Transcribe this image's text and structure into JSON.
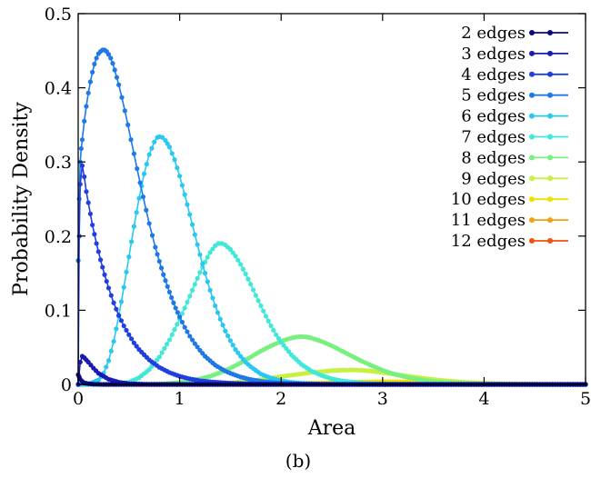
{
  "chart_data": {
    "type": "line",
    "title": "",
    "caption": "(b)",
    "xlabel": "Area",
    "ylabel": "Probability Density",
    "xlim": [
      0,
      5
    ],
    "ylim": [
      0,
      0.5
    ],
    "x_ticks": [
      "0",
      "1",
      "2",
      "3",
      "4",
      "5"
    ],
    "y_ticks": [
      "0",
      "0.1",
      "0.2",
      "0.3",
      "0.4",
      "0.5"
    ],
    "grid": false,
    "legend_position": "top-right",
    "markers": "filled-circle",
    "series": [
      {
        "name": "2 edges",
        "color": "#0a0a80",
        "points": [
          [
            0.0,
            0.013
          ],
          [
            0.01,
            0.01
          ],
          [
            0.02,
            0.007
          ],
          [
            0.04,
            0.004
          ],
          [
            0.06,
            0.002
          ],
          [
            0.1,
            0.001
          ],
          [
            0.15,
            0.0003
          ],
          [
            0.25,
            0.0
          ],
          [
            0.5,
            0.0
          ],
          [
            1.0,
            0.0
          ],
          [
            1.5,
            0.0
          ],
          [
            2.0,
            0.0
          ],
          [
            2.5,
            0.0
          ],
          [
            3.0,
            0.0
          ],
          [
            3.5,
            0.0
          ],
          [
            4.0,
            0.0
          ],
          [
            4.5,
            0.0
          ],
          [
            5.0,
            0.0
          ]
        ]
      },
      {
        "name": "3 edges",
        "color": "#1a1ab0",
        "points": [
          [
            0.0,
            0.0
          ],
          [
            0.02,
            0.03
          ],
          [
            0.04,
            0.038
          ],
          [
            0.06,
            0.036
          ],
          [
            0.1,
            0.03
          ],
          [
            0.15,
            0.022
          ],
          [
            0.2,
            0.015
          ],
          [
            0.3,
            0.007
          ],
          [
            0.4,
            0.003
          ],
          [
            0.5,
            0.001
          ],
          [
            0.7,
            0.0
          ],
          [
            1.0,
            0.0
          ],
          [
            2.0,
            0.0
          ],
          [
            3.0,
            0.0
          ],
          [
            4.0,
            0.0
          ],
          [
            5.0,
            0.0
          ]
        ]
      },
      {
        "name": "4 edges",
        "color": "#1f3fe0",
        "points": [
          [
            0.0,
            0.0
          ],
          [
            0.01,
            0.2
          ],
          [
            0.02,
            0.27
          ],
          [
            0.04,
            0.295
          ],
          [
            0.06,
            0.28
          ],
          [
            0.08,
            0.26
          ],
          [
            0.1,
            0.245
          ],
          [
            0.14,
            0.215
          ],
          [
            0.18,
            0.19
          ],
          [
            0.22,
            0.168
          ],
          [
            0.26,
            0.148
          ],
          [
            0.3,
            0.13
          ],
          [
            0.35,
            0.11
          ],
          [
            0.4,
            0.093
          ],
          [
            0.45,
            0.079
          ],
          [
            0.5,
            0.067
          ],
          [
            0.55,
            0.056
          ],
          [
            0.6,
            0.047
          ],
          [
            0.7,
            0.033
          ],
          [
            0.8,
            0.023
          ],
          [
            0.9,
            0.016
          ],
          [
            1.0,
            0.011
          ],
          [
            1.1,
            0.0075
          ],
          [
            1.2,
            0.005
          ],
          [
            1.3,
            0.0035
          ],
          [
            1.5,
            0.0017
          ],
          [
            1.7,
            0.0008
          ],
          [
            2.0,
            0.0002
          ],
          [
            2.5,
            0.0
          ],
          [
            3.0,
            0.0
          ],
          [
            4.0,
            0.0
          ],
          [
            5.0,
            0.0
          ]
        ]
      },
      {
        "name": "5 edges",
        "color": "#1f78e8",
        "points": [
          [
            0.0,
            0.167
          ],
          [
            0.01,
            0.25
          ],
          [
            0.02,
            0.3
          ],
          [
            0.03,
            0.318
          ],
          [
            0.04,
            0.33
          ],
          [
            0.06,
            0.355
          ],
          [
            0.08,
            0.375
          ],
          [
            0.1,
            0.393
          ],
          [
            0.12,
            0.408
          ],
          [
            0.14,
            0.421
          ],
          [
            0.16,
            0.432
          ],
          [
            0.18,
            0.44
          ],
          [
            0.2,
            0.446
          ],
          [
            0.22,
            0.449
          ],
          [
            0.24,
            0.451
          ],
          [
            0.26,
            0.451
          ],
          [
            0.28,
            0.449
          ],
          [
            0.3,
            0.445
          ],
          [
            0.32,
            0.44
          ],
          [
            0.34,
            0.433
          ],
          [
            0.36,
            0.424
          ],
          [
            0.38,
            0.414
          ],
          [
            0.4,
            0.404
          ],
          [
            0.43,
            0.387
          ],
          [
            0.46,
            0.369
          ],
          [
            0.49,
            0.35
          ],
          [
            0.52,
            0.33
          ],
          [
            0.55,
            0.311
          ],
          [
            0.58,
            0.291
          ],
          [
            0.61,
            0.272
          ],
          [
            0.64,
            0.253
          ],
          [
            0.67,
            0.235
          ],
          [
            0.7,
            0.217
          ],
          [
            0.73,
            0.201
          ],
          [
            0.76,
            0.185
          ],
          [
            0.8,
            0.166
          ],
          [
            0.84,
            0.148
          ],
          [
            0.88,
            0.132
          ],
          [
            0.92,
            0.117
          ],
          [
            0.96,
            0.103
          ],
          [
            1.0,
            0.091
          ],
          [
            1.05,
            0.077
          ],
          [
            1.1,
            0.065
          ],
          [
            1.15,
            0.055
          ],
          [
            1.2,
            0.046
          ],
          [
            1.25,
            0.038
          ],
          [
            1.3,
            0.032
          ],
          [
            1.35,
            0.026
          ],
          [
            1.4,
            0.022
          ],
          [
            1.45,
            0.018
          ],
          [
            1.5,
            0.015
          ],
          [
            1.6,
            0.01
          ],
          [
            1.7,
            0.0066
          ],
          [
            1.8,
            0.0043
          ],
          [
            1.9,
            0.0028
          ],
          [
            2.0,
            0.0018
          ],
          [
            2.2,
            0.0007
          ],
          [
            2.5,
            0.0002
          ],
          [
            3.0,
            0.0
          ],
          [
            4.0,
            0.0
          ],
          [
            5.0,
            0.0
          ]
        ]
      },
      {
        "name": "6 edges",
        "color": "#28c8f0",
        "points": [
          [
            0.0,
            0.0
          ],
          [
            0.1,
            0.0003
          ],
          [
            0.2,
            0.006
          ],
          [
            0.25,
            0.015
          ],
          [
            0.3,
            0.032
          ],
          [
            0.35,
            0.058
          ],
          [
            0.4,
            0.092
          ],
          [
            0.45,
            0.131
          ],
          [
            0.5,
            0.172
          ],
          [
            0.55,
            0.213
          ],
          [
            0.6,
            0.251
          ],
          [
            0.65,
            0.284
          ],
          [
            0.7,
            0.31
          ],
          [
            0.75,
            0.327
          ],
          [
            0.78,
            0.333
          ],
          [
            0.8,
            0.334
          ],
          [
            0.83,
            0.333
          ],
          [
            0.86,
            0.329
          ],
          [
            0.9,
            0.32
          ],
          [
            0.95,
            0.303
          ],
          [
            1.0,
            0.281
          ],
          [
            1.05,
            0.256
          ],
          [
            1.1,
            0.229
          ],
          [
            1.15,
            0.202
          ],
          [
            1.2,
            0.175
          ],
          [
            1.25,
            0.15
          ],
          [
            1.3,
            0.127
          ],
          [
            1.35,
            0.106
          ],
          [
            1.4,
            0.088
          ],
          [
            1.45,
            0.072
          ],
          [
            1.5,
            0.059
          ],
          [
            1.55,
            0.047
          ],
          [
            1.6,
            0.038
          ],
          [
            1.65,
            0.03
          ],
          [
            1.7,
            0.024
          ],
          [
            1.8,
            0.014
          ],
          [
            1.9,
            0.0085
          ],
          [
            2.0,
            0.005
          ],
          [
            2.1,
            0.0028
          ],
          [
            2.2,
            0.0015
          ],
          [
            2.4,
            0.0004
          ],
          [
            2.7,
            0.0
          ],
          [
            3.0,
            0.0
          ],
          [
            4.0,
            0.0
          ],
          [
            5.0,
            0.0
          ]
        ]
      },
      {
        "name": "7 edges",
        "color": "#40e8d8",
        "points": [
          [
            0.0,
            0.0
          ],
          [
            0.3,
            0.0
          ],
          [
            0.4,
            0.0008
          ],
          [
            0.5,
            0.003
          ],
          [
            0.6,
            0.009
          ],
          [
            0.7,
            0.02
          ],
          [
            0.8,
            0.037
          ],
          [
            0.9,
            0.06
          ],
          [
            1.0,
            0.088
          ],
          [
            1.05,
            0.103
          ],
          [
            1.1,
            0.119
          ],
          [
            1.15,
            0.135
          ],
          [
            1.2,
            0.151
          ],
          [
            1.25,
            0.165
          ],
          [
            1.3,
            0.178
          ],
          [
            1.35,
            0.187
          ],
          [
            1.38,
            0.19
          ],
          [
            1.42,
            0.19
          ],
          [
            1.45,
            0.188
          ],
          [
            1.5,
            0.182
          ],
          [
            1.55,
            0.173
          ],
          [
            1.6,
            0.162
          ],
          [
            1.65,
            0.149
          ],
          [
            1.7,
            0.135
          ],
          [
            1.75,
            0.12
          ],
          [
            1.8,
            0.106
          ],
          [
            1.85,
            0.092
          ],
          [
            1.9,
            0.079
          ],
          [
            1.95,
            0.067
          ],
          [
            2.0,
            0.057
          ],
          [
            2.1,
            0.04
          ],
          [
            2.2,
            0.027
          ],
          [
            2.3,
            0.018
          ],
          [
            2.4,
            0.012
          ],
          [
            2.5,
            0.0075
          ],
          [
            2.6,
            0.0047
          ],
          [
            2.8,
            0.0017
          ],
          [
            3.0,
            0.0006
          ],
          [
            3.5,
            0.0
          ],
          [
            4.0,
            0.0
          ],
          [
            5.0,
            0.0
          ]
        ]
      },
      {
        "name": "8 edges",
        "color": "#78f080",
        "points": [
          [
            0.0,
            0.0
          ],
          [
            0.6,
            0.0
          ],
          [
            0.8,
            0.0006
          ],
          [
            1.0,
            0.0025
          ],
          [
            1.2,
            0.0075
          ],
          [
            1.3,
            0.011
          ],
          [
            1.4,
            0.016
          ],
          [
            1.5,
            0.022
          ],
          [
            1.6,
            0.029
          ],
          [
            1.7,
            0.037
          ],
          [
            1.8,
            0.045
          ],
          [
            1.9,
            0.052
          ],
          [
            2.0,
            0.058
          ],
          [
            2.05,
            0.0605
          ],
          [
            2.1,
            0.0625
          ],
          [
            2.15,
            0.064
          ],
          [
            2.2,
            0.0645
          ],
          [
            2.25,
            0.064
          ],
          [
            2.3,
            0.0625
          ],
          [
            2.4,
            0.058
          ],
          [
            2.5,
            0.052
          ],
          [
            2.6,
            0.045
          ],
          [
            2.7,
            0.038
          ],
          [
            2.8,
            0.031
          ],
          [
            2.9,
            0.025
          ],
          [
            3.0,
            0.019
          ],
          [
            3.1,
            0.0145
          ],
          [
            3.2,
            0.011
          ],
          [
            3.3,
            0.008
          ],
          [
            3.4,
            0.0057
          ],
          [
            3.5,
            0.004
          ],
          [
            3.7,
            0.0019
          ],
          [
            4.0,
            0.0006
          ],
          [
            4.5,
            0.0
          ],
          [
            5.0,
            0.0
          ]
        ]
      },
      {
        "name": "9 edges",
        "color": "#c8f040",
        "points": [
          [
            0.0,
            0.0
          ],
          [
            1.0,
            0.0
          ],
          [
            1.3,
            0.0008
          ],
          [
            1.5,
            0.002
          ],
          [
            1.7,
            0.0045
          ],
          [
            1.9,
            0.0085
          ],
          [
            2.1,
            0.0125
          ],
          [
            2.3,
            0.016
          ],
          [
            2.5,
            0.0185
          ],
          [
            2.6,
            0.0192
          ],
          [
            2.7,
            0.0195
          ],
          [
            2.8,
            0.019
          ],
          [
            2.9,
            0.0178
          ],
          [
            3.0,
            0.016
          ],
          [
            3.2,
            0.012
          ],
          [
            3.4,
            0.0082
          ],
          [
            3.6,
            0.0052
          ],
          [
            3.8,
            0.003
          ],
          [
            4.0,
            0.0016
          ],
          [
            4.3,
            0.0006
          ],
          [
            4.7,
            0.0
          ],
          [
            5.0,
            0.0
          ]
        ]
      },
      {
        "name": "10 edges",
        "color": "#f0e000",
        "points": [
          [
            0.0,
            0.0
          ],
          [
            1.5,
            0.0
          ],
          [
            2.0,
            0.0008
          ],
          [
            2.4,
            0.002
          ],
          [
            2.7,
            0.0032
          ],
          [
            3.0,
            0.0038
          ],
          [
            3.2,
            0.0036
          ],
          [
            3.5,
            0.0027
          ],
          [
            3.8,
            0.0016
          ],
          [
            4.2,
            0.0006
          ],
          [
            4.6,
            0.0001
          ],
          [
            5.0,
            0.0
          ]
        ]
      },
      {
        "name": "11 edges",
        "color": "#f0a010",
        "points": [
          [
            0.0,
            0.0
          ],
          [
            2.0,
            0.0
          ],
          [
            2.5,
            0.0002
          ],
          [
            3.0,
            0.0005
          ],
          [
            3.4,
            0.0006
          ],
          [
            3.8,
            0.0004
          ],
          [
            4.3,
            0.0001
          ],
          [
            5.0,
            0.0
          ]
        ]
      },
      {
        "name": "12 edges",
        "color": "#f05010",
        "points": [
          [
            0.0,
            0.0
          ],
          [
            2.5,
            0.0
          ],
          [
            3.0,
            0.0
          ],
          [
            3.5,
            5e-05
          ],
          [
            4.0,
            3e-05
          ],
          [
            4.5,
            0.0
          ],
          [
            5.0,
            0.0
          ]
        ]
      }
    ]
  }
}
